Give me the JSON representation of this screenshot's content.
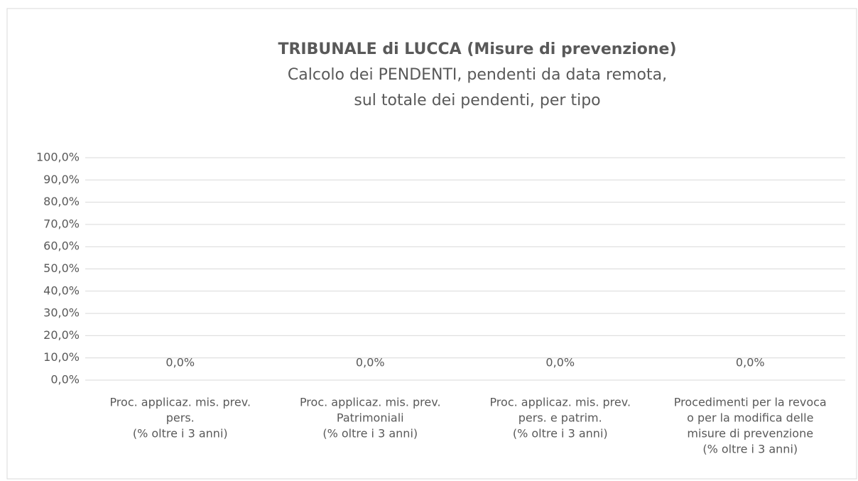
{
  "chart_data": {
    "type": "bar",
    "title": "TRIBUNALE di LUCCA (Misure di prevenzione)",
    "subtitle": [
      "Calcolo dei PENDENTI, pendenti da data remota,",
      "sul totale dei pendenti, per tipo"
    ],
    "categories": [
      [
        "Proc. applicaz. mis. prev.",
        "pers.",
        "(% oltre i 3 anni)"
      ],
      [
        "Proc. applicaz. mis. prev.",
        "Patrimoniali",
        "(% oltre i 3 anni)"
      ],
      [
        "Proc. applicaz. mis. prev.",
        "pers. e patrim.",
        "(% oltre i 3 anni)"
      ],
      [
        "Procedimenti per la revoca",
        "o per la modifica delle",
        "misure di prevenzione",
        "(% oltre i 3 anni)"
      ]
    ],
    "values": [
      0,
      0,
      0,
      0
    ],
    "value_labels": [
      "0,0%",
      "0,0%",
      "0,0%",
      "0,0%"
    ],
    "color": "#4472c4",
    "ylim": [
      0,
      100
    ],
    "yticks": [
      {
        "value": 0,
        "label": "0,0%"
      },
      {
        "value": 10,
        "label": "10,0%"
      },
      {
        "value": 20,
        "label": "20,0%"
      },
      {
        "value": 30,
        "label": "30,0%"
      },
      {
        "value": 40,
        "label": "40,0%"
      },
      {
        "value": 50,
        "label": "50,0%"
      },
      {
        "value": 60,
        "label": "60,0%"
      },
      {
        "value": 70,
        "label": "70,0%"
      },
      {
        "value": 80,
        "label": "80,0%"
      },
      {
        "value": 90,
        "label": "90,0%"
      },
      {
        "value": 100,
        "label": "100,0%"
      }
    ],
    "grid": true
  }
}
